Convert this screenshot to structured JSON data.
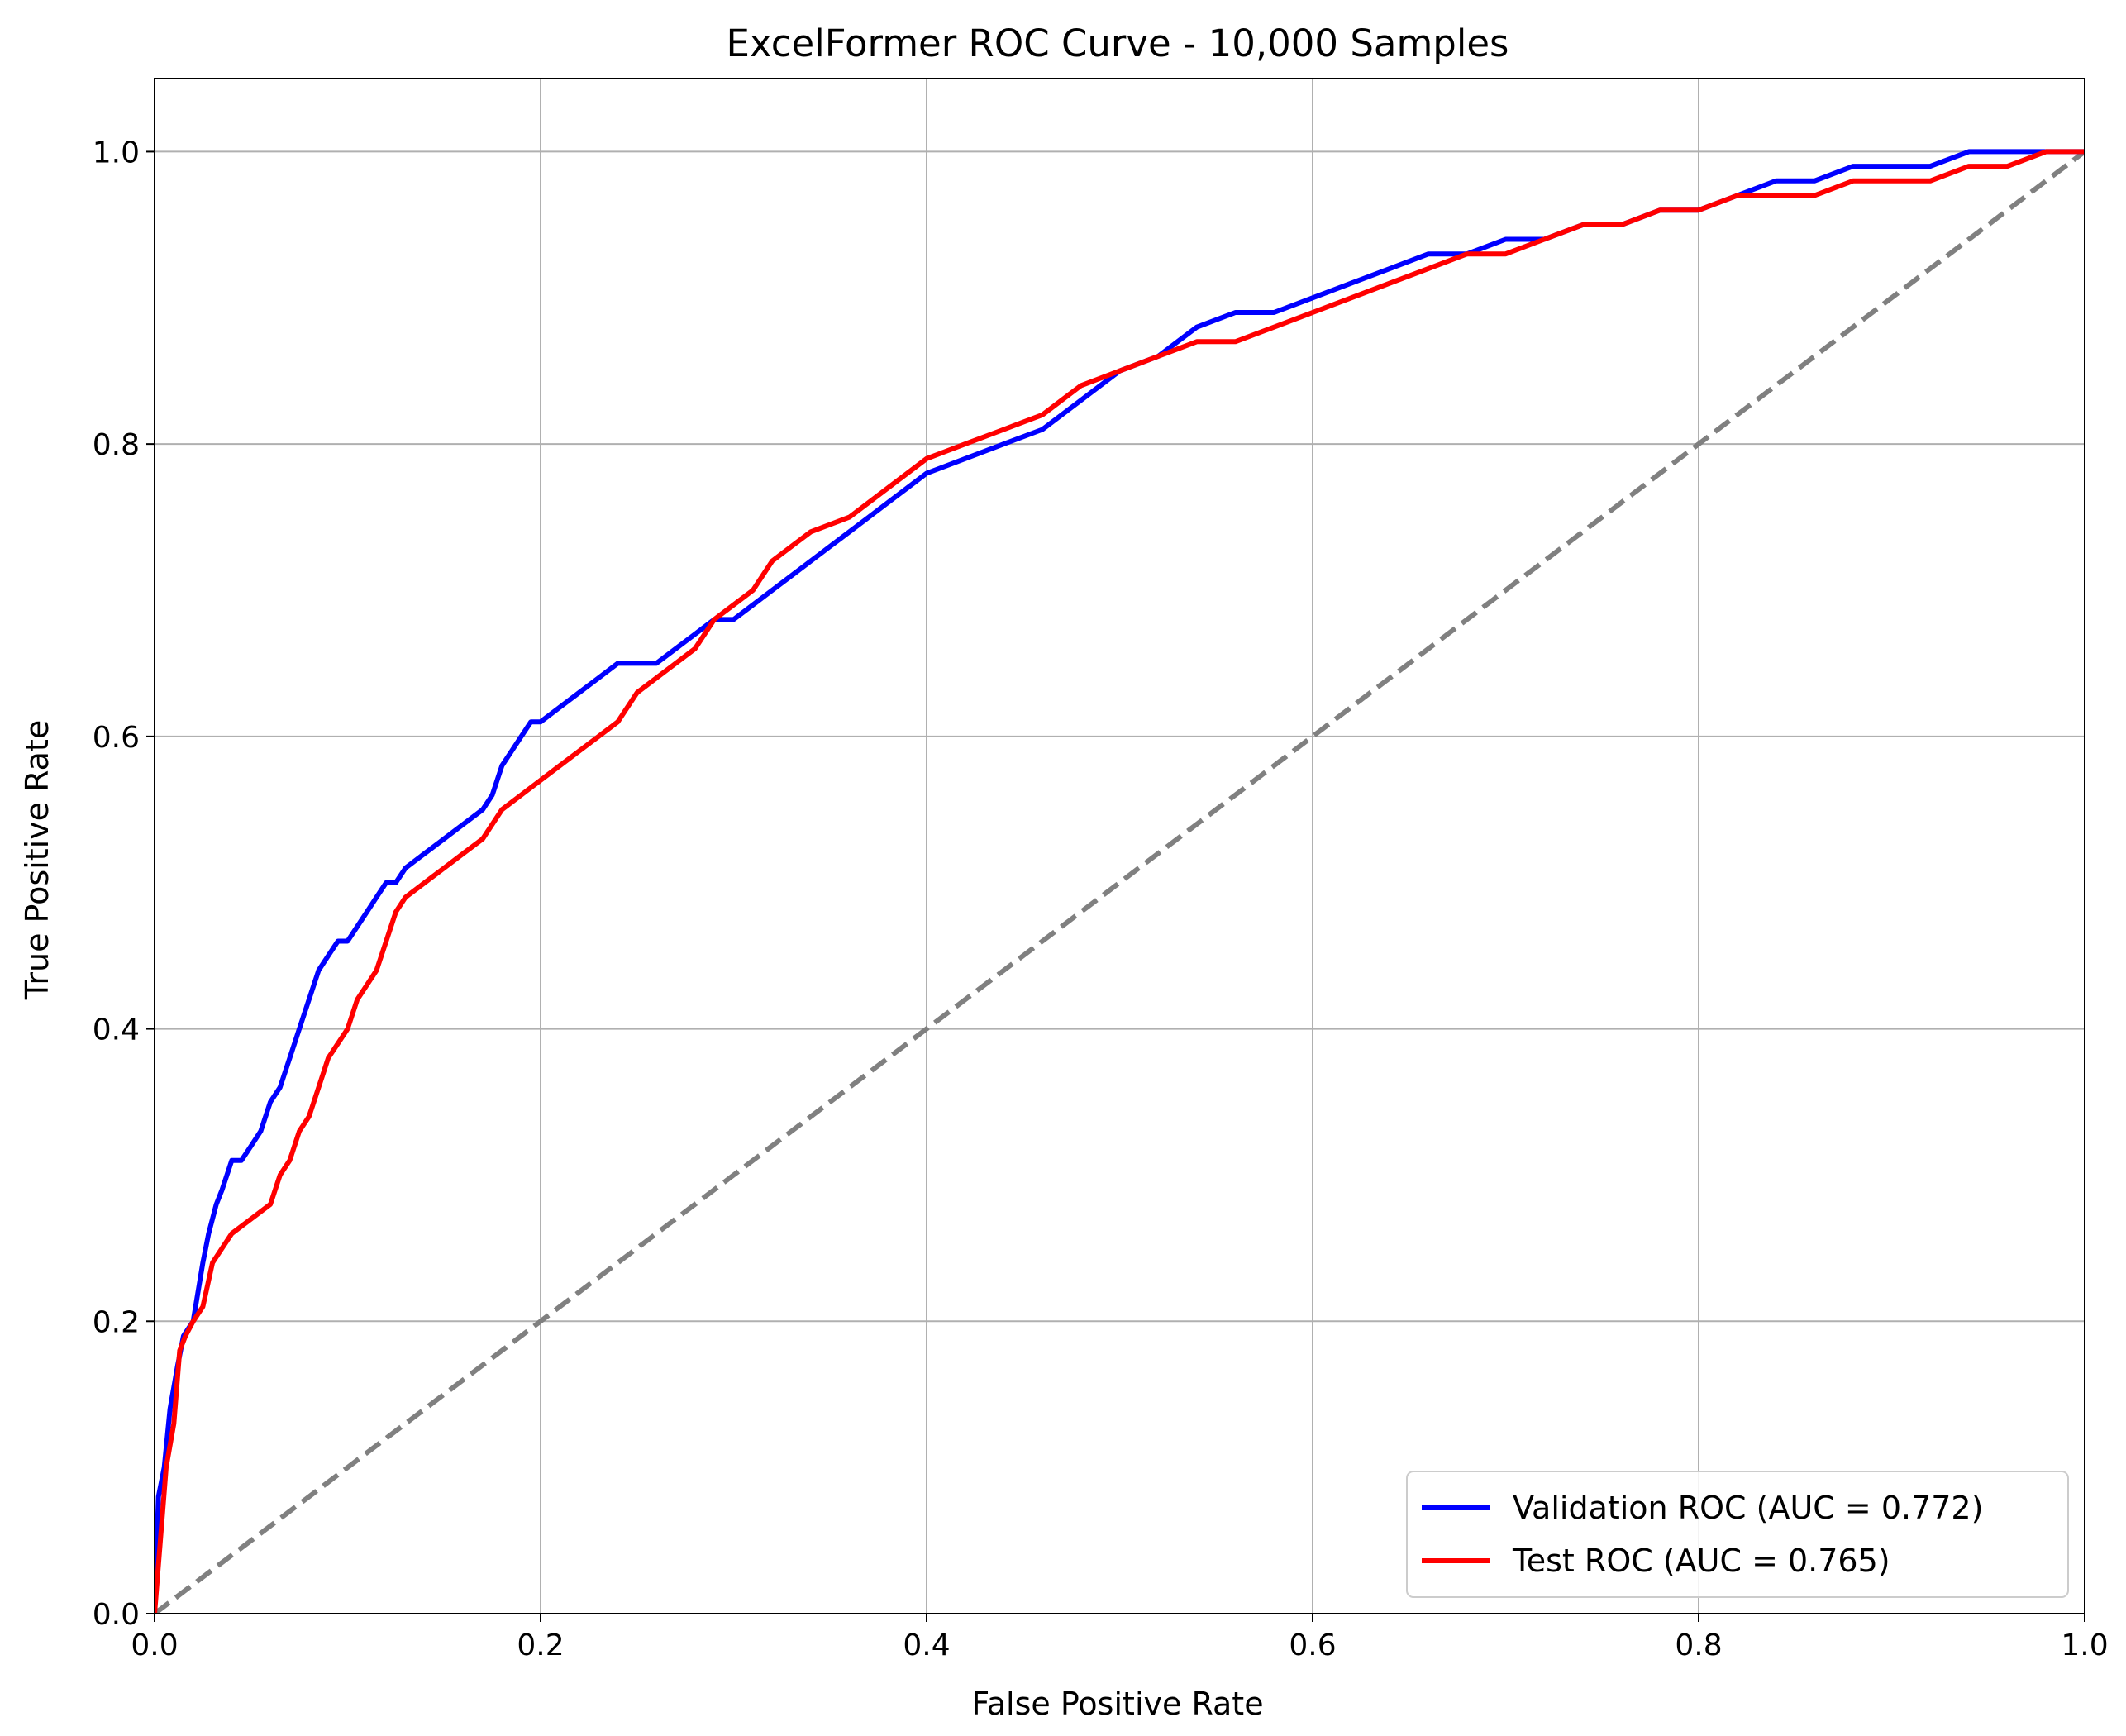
{
  "chart_data": {
    "type": "line",
    "title": "ExcelFormer ROC Curve - 10,000 Samples",
    "xlabel": "False Positive Rate",
    "ylabel": "True Positive Rate",
    "xlim": [
      0,
      1
    ],
    "ylim": [
      0,
      1.05
    ],
    "xticks": [
      "0.0",
      "0.2",
      "0.4",
      "0.6",
      "0.8",
      "1.0"
    ],
    "yticks": [
      "0.0",
      "0.2",
      "0.4",
      "0.6",
      "0.8",
      "1.0"
    ],
    "grid": true,
    "legend_position": "lower-right",
    "series": [
      {
        "name": "Validation ROC (AUC = 0.772)",
        "color": "#0000ff",
        "x": [
          0,
          0.002,
          0.005,
          0.008,
          0.012,
          0.015,
          0.02,
          0.025,
          0.028,
          0.032,
          0.035,
          0.04,
          0.045,
          0.05,
          0.055,
          0.06,
          0.065,
          0.07,
          0.075,
          0.08,
          0.085,
          0.09,
          0.095,
          0.1,
          0.105,
          0.11,
          0.115,
          0.12,
          0.125,
          0.13,
          0.14,
          0.15,
          0.16,
          0.17,
          0.175,
          0.18,
          0.185,
          0.19,
          0.195,
          0.2,
          0.21,
          0.22,
          0.23,
          0.24,
          0.25,
          0.26,
          0.27,
          0.28,
          0.29,
          0.3,
          0.31,
          0.32,
          0.33,
          0.34,
          0.35,
          0.36,
          0.37,
          0.38,
          0.39,
          0.4,
          0.42,
          0.44,
          0.46,
          0.48,
          0.5,
          0.52,
          0.54,
          0.56,
          0.58,
          0.6,
          0.62,
          0.64,
          0.66,
          0.68,
          0.7,
          0.72,
          0.74,
          0.76,
          0.78,
          0.8,
          0.82,
          0.84,
          0.86,
          0.88,
          0.9,
          0.92,
          0.94,
          0.96,
          0.98,
          1.0
        ],
        "y": [
          0,
          0.08,
          0.1,
          0.14,
          0.17,
          0.19,
          0.2,
          0.24,
          0.26,
          0.28,
          0.29,
          0.31,
          0.31,
          0.32,
          0.33,
          0.35,
          0.36,
          0.38,
          0.4,
          0.42,
          0.44,
          0.45,
          0.46,
          0.46,
          0.47,
          0.48,
          0.49,
          0.5,
          0.5,
          0.51,
          0.52,
          0.53,
          0.54,
          0.55,
          0.56,
          0.58,
          0.59,
          0.6,
          0.61,
          0.61,
          0.62,
          0.63,
          0.64,
          0.65,
          0.65,
          0.65,
          0.66,
          0.67,
          0.68,
          0.68,
          0.69,
          0.7,
          0.71,
          0.72,
          0.73,
          0.74,
          0.75,
          0.76,
          0.77,
          0.78,
          0.79,
          0.8,
          0.81,
          0.83,
          0.85,
          0.86,
          0.88,
          0.89,
          0.89,
          0.9,
          0.91,
          0.92,
          0.93,
          0.93,
          0.94,
          0.94,
          0.95,
          0.95,
          0.96,
          0.96,
          0.97,
          0.98,
          0.98,
          0.99,
          0.99,
          0.99,
          1.0,
          1.0,
          1.0,
          1.0
        ]
      },
      {
        "name": "Test ROC (AUC = 0.765)",
        "color": "#ff0000",
        "x": [
          0,
          0.003,
          0.006,
          0.01,
          0.013,
          0.016,
          0.02,
          0.025,
          0.03,
          0.035,
          0.04,
          0.05,
          0.06,
          0.065,
          0.07,
          0.075,
          0.08,
          0.085,
          0.09,
          0.095,
          0.1,
          0.105,
          0.11,
          0.115,
          0.12,
          0.125,
          0.13,
          0.14,
          0.15,
          0.16,
          0.17,
          0.18,
          0.19,
          0.2,
          0.21,
          0.22,
          0.23,
          0.24,
          0.25,
          0.26,
          0.27,
          0.28,
          0.29,
          0.3,
          0.31,
          0.32,
          0.33,
          0.34,
          0.36,
          0.38,
          0.4,
          0.42,
          0.44,
          0.46,
          0.48,
          0.5,
          0.52,
          0.54,
          0.56,
          0.58,
          0.6,
          0.62,
          0.64,
          0.66,
          0.68,
          0.7,
          0.72,
          0.74,
          0.76,
          0.78,
          0.8,
          0.82,
          0.84,
          0.86,
          0.88,
          0.9,
          0.92,
          0.94,
          0.96,
          0.98,
          1.0
        ],
        "y": [
          0,
          0.05,
          0.1,
          0.13,
          0.18,
          0.19,
          0.2,
          0.21,
          0.24,
          0.25,
          0.26,
          0.27,
          0.28,
          0.3,
          0.31,
          0.33,
          0.34,
          0.36,
          0.38,
          0.39,
          0.4,
          0.42,
          0.43,
          0.44,
          0.46,
          0.48,
          0.49,
          0.5,
          0.51,
          0.52,
          0.53,
          0.55,
          0.56,
          0.57,
          0.58,
          0.59,
          0.6,
          0.61,
          0.63,
          0.64,
          0.65,
          0.66,
          0.68,
          0.69,
          0.7,
          0.72,
          0.73,
          0.74,
          0.75,
          0.77,
          0.79,
          0.8,
          0.81,
          0.82,
          0.84,
          0.85,
          0.86,
          0.87,
          0.87,
          0.88,
          0.89,
          0.9,
          0.91,
          0.92,
          0.93,
          0.93,
          0.94,
          0.95,
          0.95,
          0.96,
          0.96,
          0.97,
          0.97,
          0.97,
          0.98,
          0.98,
          0.98,
          0.99,
          0.99,
          1.0,
          1.0
        ]
      },
      {
        "name": "",
        "color": "#808080",
        "style": "dashed",
        "x": [
          0,
          1
        ],
        "y": [
          0,
          1
        ]
      }
    ],
    "colors": {
      "grid": "#b0b0b0",
      "axes": "#000000"
    }
  }
}
